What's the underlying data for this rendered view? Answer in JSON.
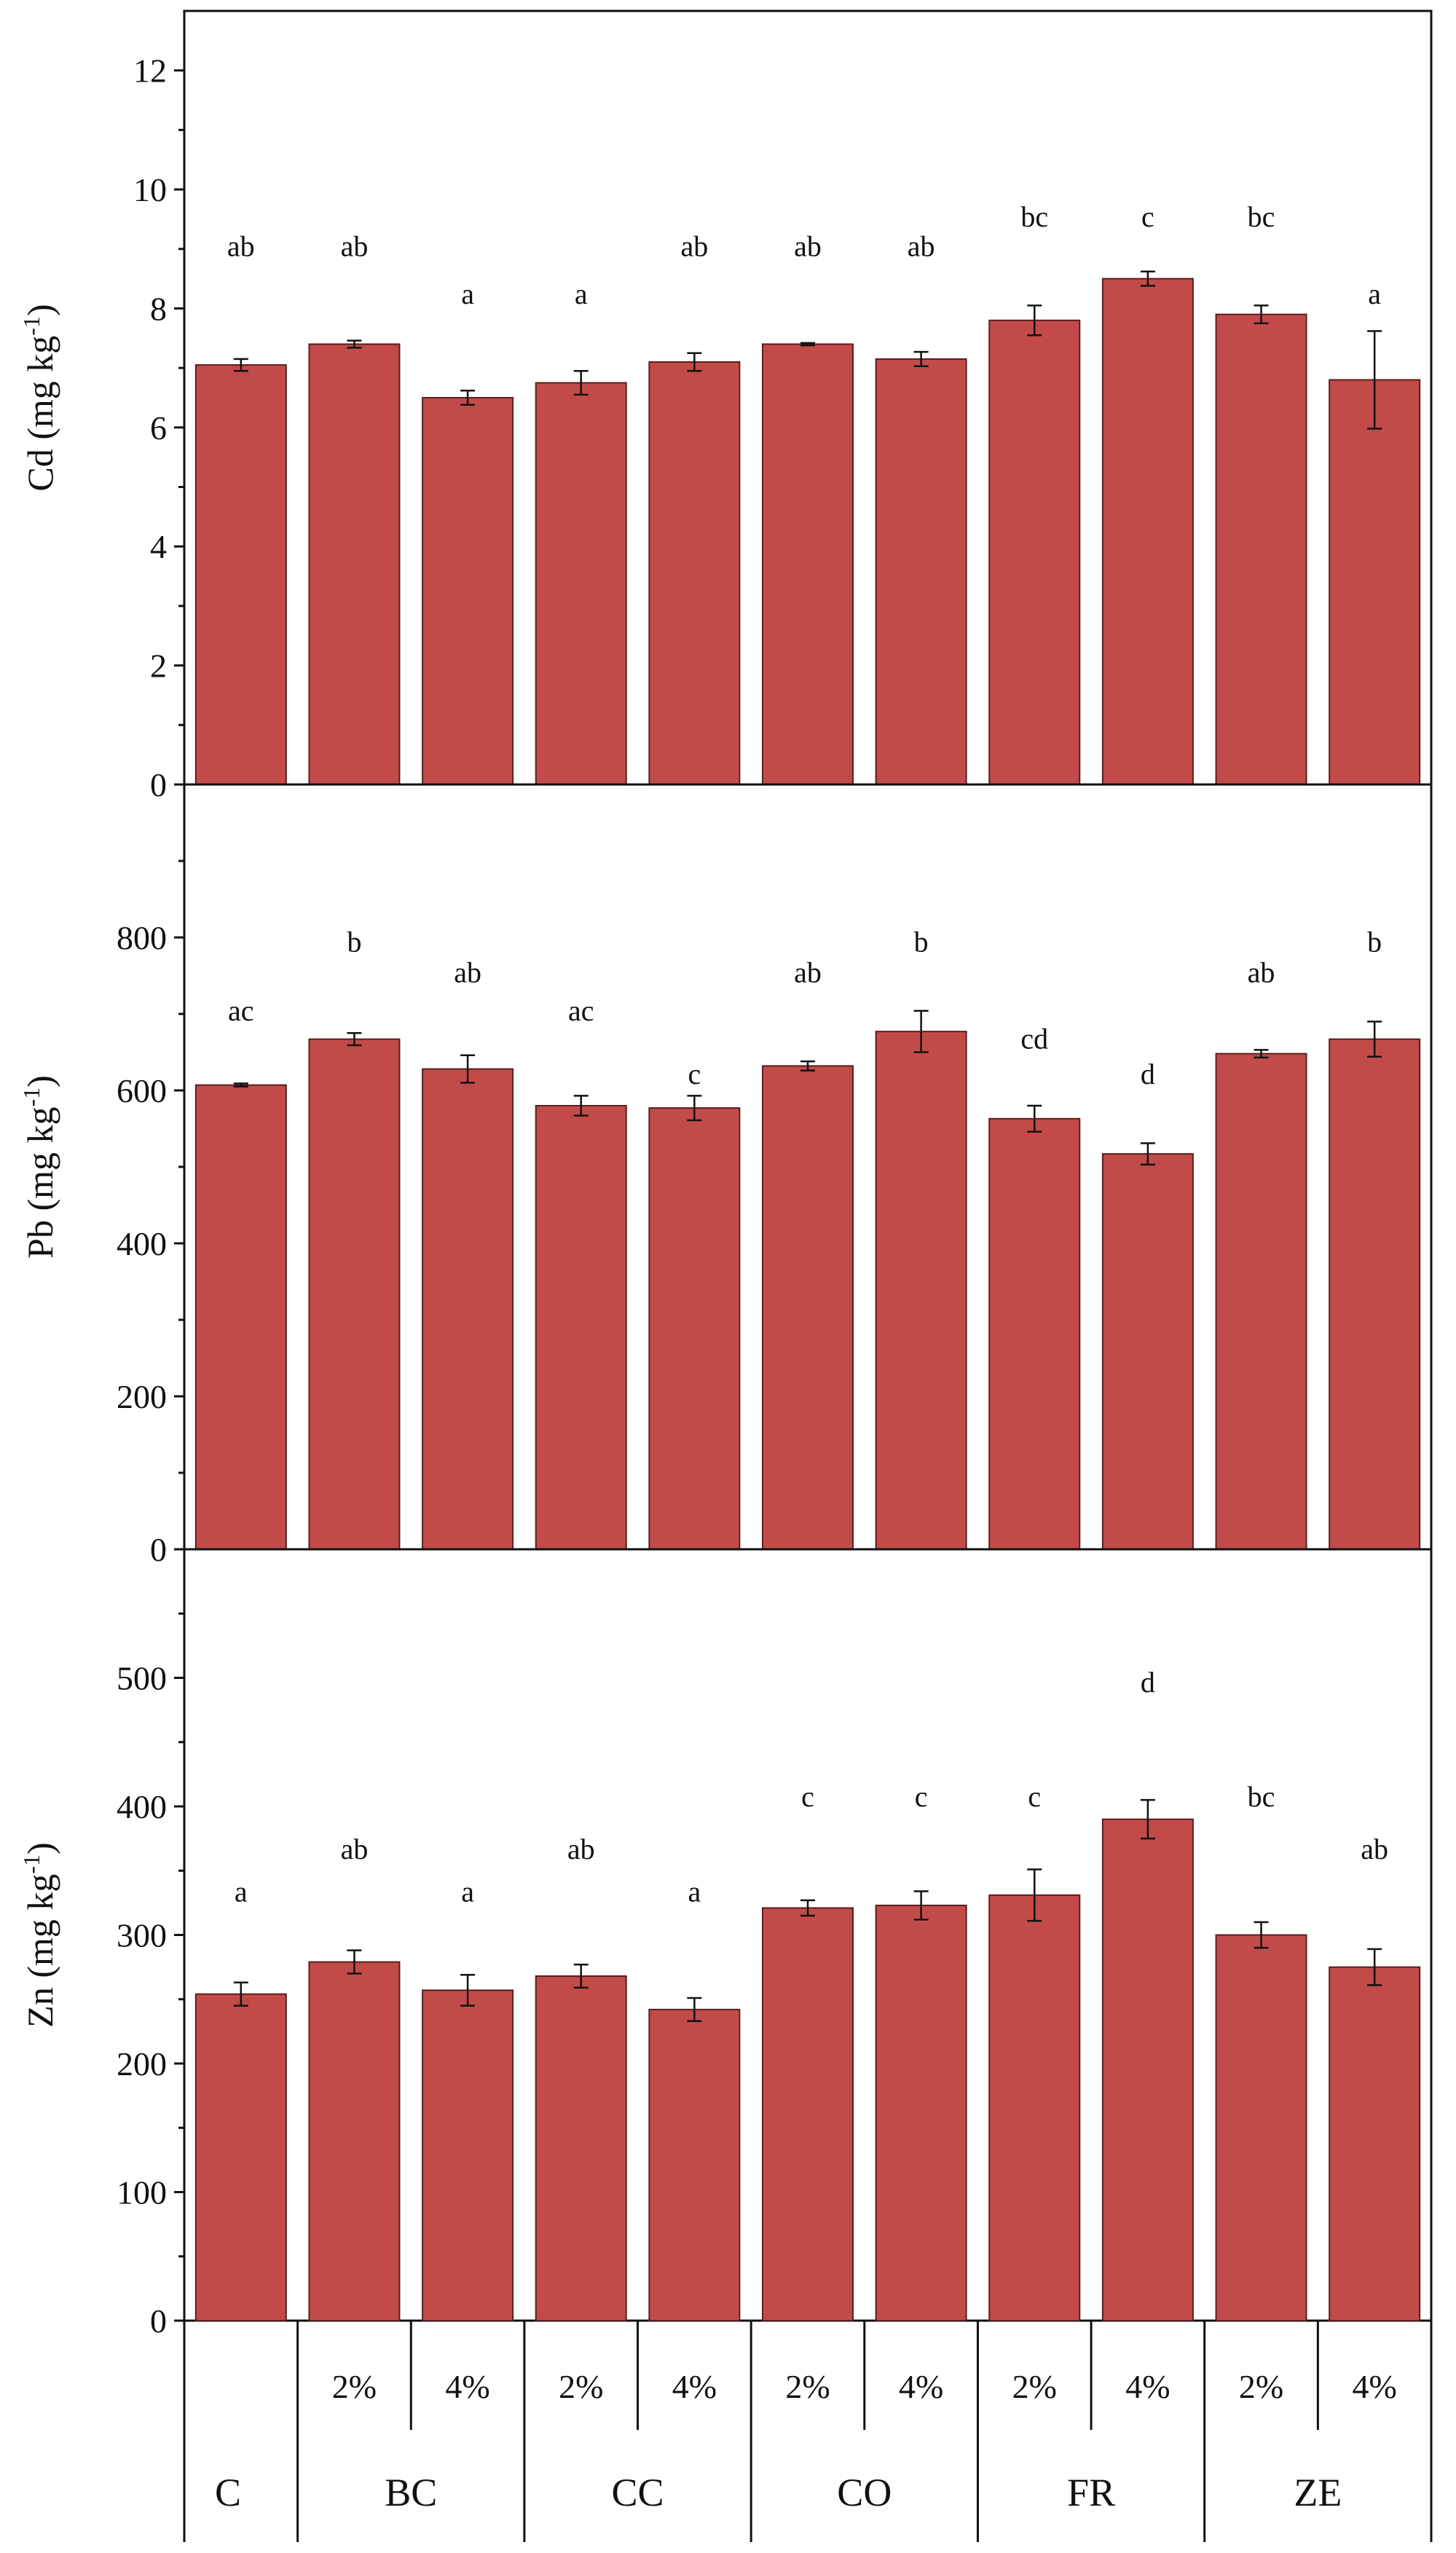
{
  "chart_data": [
    {
      "type": "bar",
      "panel": "Cd",
      "ylabel": "Cd (mg kg",
      "ylabel_sup": "-1",
      "ylabel_close": ")",
      "ylim": [
        0,
        13
      ],
      "yticks": [
        0,
        2,
        4,
        6,
        8,
        10,
        12
      ],
      "ytick_labels": [
        "0",
        "2",
        "4",
        "6",
        "8",
        "10",
        "12"
      ],
      "values": [
        7.05,
        7.4,
        6.5,
        6.75,
        7.1,
        7.4,
        7.15,
        7.8,
        8.5,
        7.9,
        6.8
      ],
      "errors": [
        0.1,
        0.06,
        0.12,
        0.2,
        0.15,
        0.02,
        0.12,
        0.25,
        0.12,
        0.15,
        0.82
      ],
      "letters": [
        "ab",
        "ab",
        "a",
        "a",
        "ab",
        "ab",
        "ab",
        "bc",
        "c",
        "bc",
        "a"
      ],
      "letter_y": [
        9.05,
        9.05,
        8.25,
        8.25,
        9.05,
        9.05,
        9.05,
        9.55,
        9.55,
        9.55,
        8.25
      ]
    },
    {
      "type": "bar",
      "panel": "Pb",
      "ylabel": "Pb (mg kg",
      "ylabel_sup": "-1",
      "ylabel_close": ")",
      "ylim": [
        0,
        1000
      ],
      "yticks": [
        0,
        200,
        400,
        600,
        800
      ],
      "ytick_labels": [
        "0",
        "200",
        "400",
        "600",
        "800"
      ],
      "values": [
        607,
        667,
        628,
        580,
        577,
        632,
        677,
        563,
        517,
        648,
        667
      ],
      "errors": [
        2,
        8,
        18,
        13,
        16,
        6,
        27,
        17,
        14,
        5,
        23
      ],
      "letters": [
        "ac",
        "b",
        "ab",
        "ac",
        "c",
        "ab",
        "b",
        "cd",
        "d",
        "ab",
        "b"
      ],
      "letter_y": [
        705,
        795,
        755,
        705,
        622,
        755,
        795,
        668,
        622,
        755,
        795
      ]
    },
    {
      "type": "bar",
      "panel": "Zn",
      "ylabel": "Zn (mg kg",
      "ylabel_sup": "-1",
      "ylabel_close": ")",
      "ylim": [
        0,
        600
      ],
      "yticks": [
        0,
        100,
        200,
        300,
        400,
        500
      ],
      "ytick_labels": [
        "0",
        "100",
        "200",
        "300",
        "400",
        "500"
      ],
      "values": [
        254,
        279,
        257,
        268,
        242,
        321,
        323,
        331,
        390,
        300,
        275
      ],
      "errors": [
        9,
        9,
        12,
        9,
        9,
        6,
        11,
        20,
        15,
        10,
        14
      ],
      "letters": [
        "a",
        "ab",
        "a",
        "ab",
        "a",
        "c",
        "c",
        "c",
        "d",
        "bc",
        "ab"
      ],
      "letter_y": [
        334,
        367,
        334,
        367,
        334,
        408,
        408,
        408,
        497,
        408,
        367
      ]
    }
  ],
  "x_axis": {
    "rate_labels": [
      "",
      "2%",
      "4%",
      "2%",
      "4%",
      "2%",
      "4%",
      "2%",
      "4%",
      "2%",
      "4%"
    ],
    "groups": [
      {
        "label": "C",
        "start": 0,
        "end": 0
      },
      {
        "label": "BC",
        "start": 1,
        "end": 2
      },
      {
        "label": "CC",
        "start": 3,
        "end": 4
      },
      {
        "label": "CO",
        "start": 5,
        "end": 6
      },
      {
        "label": "FR",
        "start": 7,
        "end": 8
      },
      {
        "label": "ZE",
        "start": 9,
        "end": 10
      }
    ]
  },
  "colors": {
    "bar_fill": "#c24b4a",
    "bar_stroke": "#5a1e1e",
    "axis": "#111111"
  }
}
